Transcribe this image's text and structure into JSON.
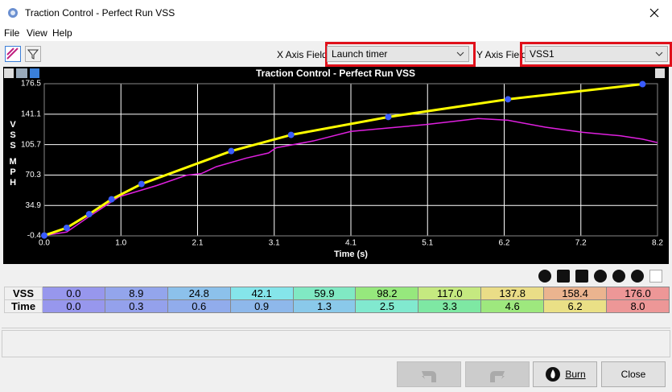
{
  "window": {
    "title": "Traction Control - Perfect Run VSS"
  },
  "menu": [
    "File",
    "View",
    "Help"
  ],
  "toolbar": {
    "x_axis_label": "X Axis Field:",
    "x_axis_value": "Launch timer",
    "y_axis_label": "Y Axis Field",
    "y_axis_value": "VSS1"
  },
  "chart_data": {
    "type": "line",
    "title": "Traction Control - Perfect Run VSS",
    "ylabel": [
      "VSS",
      "MPH"
    ],
    "xlabel": "Time (s)",
    "xlim": [
      0,
      8.2
    ],
    "ylim": [
      -0.4,
      176.5
    ],
    "xticks": [
      {
        "value": 0,
        "label": "0.0"
      },
      {
        "value": 1.025,
        "label": "1.0"
      },
      {
        "value": 2.05,
        "label": "2.1"
      },
      {
        "value": 3.075,
        "label": "3.1"
      },
      4.1,
      {
        "value": 5.125,
        "label": "5.1"
      },
      {
        "value": 6.15,
        "label": "6.2"
      },
      {
        "value": 7.175,
        "label": "7.2"
      },
      8.2
    ],
    "yticks": [
      -0.4,
      34.9,
      70.3,
      105.7,
      141.1,
      176.5
    ],
    "grid": true,
    "series": [
      {
        "color": "#ffff00",
        "marker_color": "#3a5cff",
        "x": [
          0,
          0.3,
          0.6,
          0.9,
          1.3,
          2.5,
          3.3,
          4.6,
          6.2,
          8.0
        ],
        "values": [
          0,
          8.9,
          24.8,
          42.1,
          59.9,
          98.2,
          117.0,
          137.8,
          158.4,
          176.0
        ]
      },
      {
        "color": "#e020e0",
        "x": [
          0,
          0.3,
          0.6,
          1.0,
          1.5,
          1.9,
          2.1,
          2.3,
          2.7,
          3.0,
          3.1,
          3.6,
          4.1,
          4.6,
          5.1,
          5.5,
          5.8,
          6.2,
          6.7,
          7.2,
          7.7,
          8.0,
          8.2
        ],
        "values": [
          0,
          4,
          22,
          45,
          58,
          70,
          72,
          80,
          90,
          96,
          102,
          110,
          121,
          125,
          129,
          133,
          136,
          134,
          126,
          120,
          116,
          112,
          108
        ]
      }
    ]
  },
  "table": {
    "row_headers": [
      "VSS",
      "Time"
    ],
    "rows": [
      [
        "0.0",
        "8.9",
        "24.8",
        "42.1",
        "59.9",
        "98.2",
        "117.0",
        "137.8",
        "158.4",
        "176.0"
      ],
      [
        "0.0",
        "0.3",
        "0.6",
        "0.9",
        "1.3",
        "2.5",
        "3.3",
        "4.6",
        "6.2",
        "8.0"
      ]
    ]
  },
  "buttons": [
    "Burn",
    "Close"
  ]
}
